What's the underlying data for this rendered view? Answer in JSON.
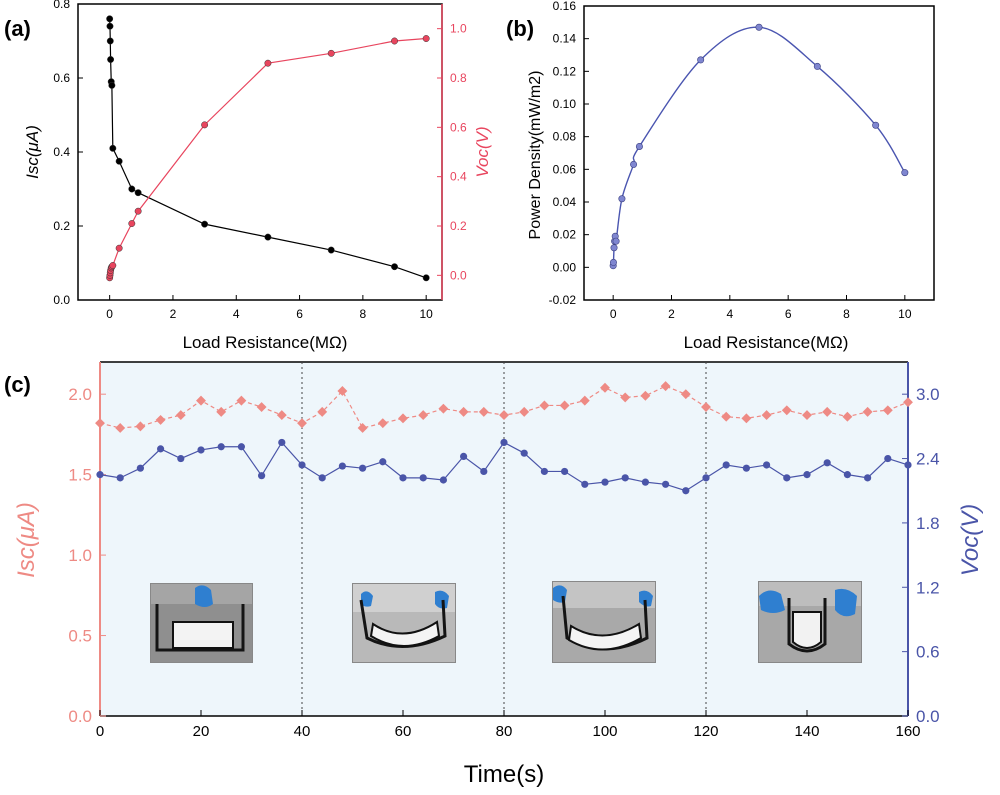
{
  "panels": {
    "a": {
      "label": "(a)"
    },
    "b": {
      "label": "(b)"
    },
    "c": {
      "label": "(c)"
    }
  },
  "chart_data": [
    {
      "type": "line",
      "panel": "a",
      "xlabel": "Load Resistance(MΩ)",
      "ylabel": "Isc(μA)",
      "ylabel2": "Voc(V)",
      "xlim": [
        -1,
        10.5
      ],
      "ylim": [
        0,
        0.8
      ],
      "ylim2": [
        -0.1,
        1.1
      ],
      "xticks": [
        0,
        2,
        4,
        6,
        8,
        10
      ],
      "yticks": [
        0.0,
        0.2,
        0.4,
        0.6,
        0.8
      ],
      "yticks2": [
        0.0,
        0.2,
        0.4,
        0.6,
        0.8,
        1.0
      ],
      "colors": {
        "isc": "#000000",
        "voc": "#e8455e"
      },
      "series": [
        {
          "axis": "left",
          "x": [
            0,
            0.01,
            0.02,
            0.03,
            0.05,
            0.07,
            0.1,
            0.3,
            0.7,
            0.9,
            3,
            5,
            7,
            9,
            10
          ],
          "y": [
            0.76,
            0.74,
            0.7,
            0.65,
            0.59,
            0.58,
            0.41,
            0.375,
            0.3,
            0.29,
            0.205,
            0.17,
            0.135,
            0.09,
            0.06
          ]
        },
        {
          "axis": "right",
          "x": [
            0,
            0.01,
            0.02,
            0.03,
            0.05,
            0.07,
            0.1,
            0.3,
            0.7,
            0.9,
            3,
            5,
            7,
            9,
            10
          ],
          "y": [
            -0.01,
            0.0,
            0.01,
            0.02,
            0.03,
            0.035,
            0.04,
            0.11,
            0.21,
            0.26,
            0.61,
            0.86,
            0.9,
            0.95,
            0.96
          ]
        }
      ]
    },
    {
      "type": "line",
      "panel": "b",
      "xlabel": "Load Resistance(MΩ)",
      "ylabel": "Power Density(mW/m2)",
      "xlim": [
        -1,
        11
      ],
      "ylim": [
        -0.02,
        0.16
      ],
      "xticks": [
        0,
        2,
        4,
        6,
        8,
        10
      ],
      "yticks": [
        -0.02,
        0.0,
        0.02,
        0.04,
        0.06,
        0.08,
        0.1,
        0.12,
        0.14,
        0.16
      ],
      "color": "#4a55b0",
      "x": [
        0,
        0.01,
        0.03,
        0.05,
        0.07,
        0.1,
        0.3,
        0.7,
        0.9,
        3,
        5,
        7,
        9,
        10
      ],
      "y": [
        0.001,
        0.003,
        0.012,
        0.016,
        0.019,
        0.016,
        0.042,
        0.063,
        0.074,
        0.127,
        0.147,
        0.123,
        0.087,
        0.058
      ]
    },
    {
      "type": "line",
      "panel": "c",
      "xlabel": "Time(s)",
      "ylabel": "Isc(μA)",
      "ylabel2": "Voc(V)",
      "xlim": [
        0,
        160
      ],
      "ylim": [
        0,
        2.2
      ],
      "ylim2": [
        0,
        3.3
      ],
      "xticks": [
        0,
        20,
        40,
        60,
        80,
        100,
        120,
        140,
        160
      ],
      "yticks": [
        0.0,
        0.5,
        1.0,
        1.5,
        2.0
      ],
      "yticks2": [
        0.0,
        0.6,
        1.2,
        1.8,
        2.4,
        3.0
      ],
      "dividers": [
        40,
        80,
        120
      ],
      "colors": {
        "isc": "#ee8a84",
        "voc": "#4a55a8"
      },
      "series": [
        {
          "axis": "left",
          "x": [
            0,
            4,
            8,
            12,
            16,
            20,
            24,
            28,
            32,
            36,
            40,
            44,
            48,
            52,
            56,
            60,
            64,
            68,
            72,
            76,
            80,
            84,
            88,
            92,
            96,
            100,
            104,
            108,
            112,
            116,
            120,
            124,
            128,
            132,
            136,
            140,
            144,
            148,
            152,
            156,
            160
          ],
          "y": [
            1.82,
            1.79,
            1.8,
            1.84,
            1.87,
            1.96,
            1.89,
            1.96,
            1.92,
            1.87,
            1.82,
            1.89,
            2.02,
            1.79,
            1.82,
            1.85,
            1.87,
            1.91,
            1.89,
            1.89,
            1.87,
            1.89,
            1.93,
            1.93,
            1.96,
            2.04,
            1.98,
            1.99,
            2.05,
            2.0,
            1.92,
            1.86,
            1.85,
            1.87,
            1.9,
            1.87,
            1.89,
            1.86,
            1.89,
            1.9,
            1.95
          ]
        },
        {
          "axis": "right",
          "x": [
            0,
            4,
            8,
            12,
            16,
            20,
            24,
            28,
            32,
            36,
            40,
            44,
            48,
            52,
            56,
            60,
            64,
            68,
            72,
            76,
            80,
            84,
            88,
            92,
            96,
            100,
            104,
            108,
            112,
            116,
            120,
            124,
            128,
            132,
            136,
            140,
            144,
            148,
            152,
            156,
            160
          ],
          "y": [
            2.25,
            2.22,
            2.31,
            2.49,
            2.4,
            2.48,
            2.51,
            2.51,
            2.24,
            2.55,
            2.34,
            2.22,
            2.33,
            2.31,
            2.37,
            2.22,
            2.22,
            2.2,
            2.42,
            2.28,
            2.55,
            2.45,
            2.28,
            2.28,
            2.16,
            2.18,
            2.22,
            2.18,
            2.16,
            2.1,
            2.22,
            2.34,
            2.31,
            2.34,
            2.22,
            2.25,
            2.36,
            2.25,
            2.22,
            2.4,
            2.34
          ]
        }
      ]
    }
  ]
}
